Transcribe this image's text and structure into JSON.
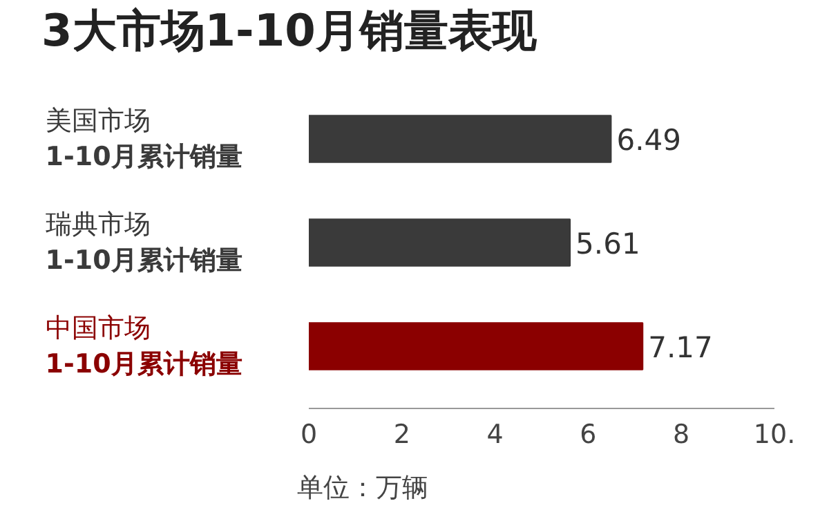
{
  "chart_data": {
    "type": "bar",
    "orientation": "horizontal",
    "title": "3大市场1-10月销量表现",
    "categories": [
      "美国市场\n1-10月累计销量",
      "瑞典市场\n1-10月累计销量",
      "中国市场\n1-10月累计销量"
    ],
    "values": [
      6.49,
      5.61,
      7.17
    ],
    "colors": [
      "#3a3a3a",
      "#3a3a3a",
      "#8b0000"
    ],
    "xlim": [
      0,
      10
    ],
    "xticks": [
      0,
      2,
      4,
      6,
      8,
      {
        "value": 10,
        "label": "10."
      }
    ],
    "data_labels": true,
    "grid": false,
    "annotations": [
      "单位：万辆"
    ]
  }
}
